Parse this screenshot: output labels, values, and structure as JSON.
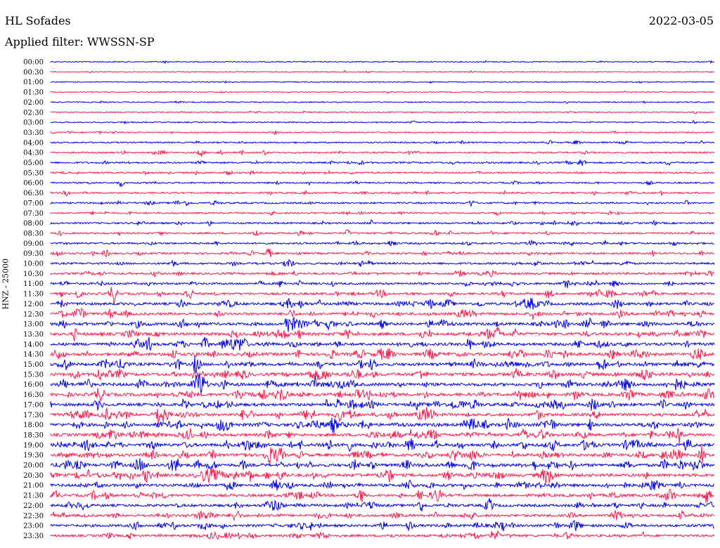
{
  "header": {
    "station": "HL Sofades",
    "date": "2022-03-05",
    "filter": "Applied filter: WWSSN-SP"
  },
  "colors": {
    "even_row": "#0000ee",
    "odd_row": "#ff1a4d"
  },
  "chart_data": {
    "type": "line",
    "title": "HL Sofades",
    "subtitle": "Applied filter: WWSSN-SP",
    "ylabel": "HNZ - 25000",
    "row_labels": [
      "00:00",
      "00:30",
      "01:00",
      "01:30",
      "02:00",
      "02:30",
      "03:00",
      "03:30",
      "04:00",
      "04:30",
      "05:00",
      "05:30",
      "06:00",
      "06:30",
      "07:00",
      "07:30",
      "08:00",
      "08:30",
      "09:00",
      "09:30",
      "10:00",
      "10:30",
      "11:00",
      "11:30",
      "12:00",
      "12:30",
      "13:00",
      "13:30",
      "14:00",
      "14:30",
      "15:00",
      "15:30",
      "16:00",
      "16:30",
      "17:00",
      "17:30",
      "18:00",
      "18:30",
      "19:00",
      "19:30",
      "20:00",
      "20:30",
      "21:00",
      "21:30",
      "22:00",
      "22:30",
      "23:00",
      "23:30"
    ],
    "row_activity": [
      0.05,
      0.05,
      0.04,
      0.05,
      0.08,
      0.12,
      0.12,
      0.15,
      0.22,
      0.3,
      0.32,
      0.3,
      0.25,
      0.3,
      0.32,
      0.3,
      0.35,
      0.35,
      0.38,
      0.45,
      0.45,
      0.5,
      0.5,
      0.6,
      0.7,
      0.72,
      0.75,
      0.8,
      0.82,
      0.85,
      0.85,
      0.9,
      0.88,
      0.9,
      0.85,
      0.85,
      0.88,
      0.85,
      0.9,
      0.85,
      0.88,
      0.85,
      0.78,
      0.75,
      0.7,
      0.7,
      0.68,
      0.6
    ],
    "grid": false,
    "legend": "none"
  }
}
